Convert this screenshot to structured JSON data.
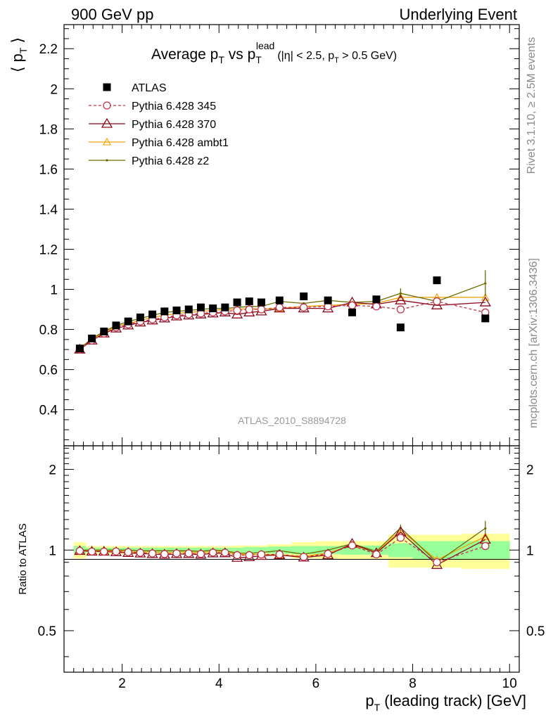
{
  "header": {
    "left": "900 GeV pp",
    "right": "Underlying Event"
  },
  "side": {
    "rivet": "Rivet 3.1.10, ≥ 2.5M events",
    "mcplots": "mcplots.cern.ch [arXiv:1306.3436]"
  },
  "watermark": "ATLAS_2010_S8894728",
  "colors": {
    "atlas": "#000000",
    "p345": "#c0334d",
    "p370": "#8b0a1e",
    "ambt1": "#f0a000",
    "z2": "#6b6b00",
    "band_inner": "#99ff99",
    "band_outer": "#ffff99"
  },
  "chart_data": [
    {
      "type": "scatter",
      "title": {
        "main": "Average p",
        "sub1": "T",
        "mid": " vs p",
        "sup": "lead",
        "sub2": "T",
        "cut": "(|η| < 2.5, p",
        "cutsub": "T",
        "cutend": " > 0.5 GeV)"
      },
      "ylabel": {
        "pre": "⟨ p",
        "sub": "T",
        "post": " ⟩"
      },
      "xlim": [
        0.8,
        10.2
      ],
      "ylim": [
        0.22,
        2.32
      ],
      "yticks": [
        0.4,
        0.6,
        0.8,
        1,
        1.2,
        1.4,
        1.6,
        1.8,
        2,
        2.2
      ],
      "ytick_labels": [
        "0.4",
        "0.6",
        "0.8",
        "1",
        "1.2",
        "1.4",
        "1.6",
        "1.8",
        "2",
        "2.2"
      ],
      "legend_position": "top-left",
      "x": [
        1.125,
        1.375,
        1.625,
        1.875,
        2.125,
        2.375,
        2.625,
        2.875,
        3.125,
        3.375,
        3.625,
        3.875,
        4.125,
        4.375,
        4.625,
        4.875,
        5.25,
        5.75,
        6.25,
        6.75,
        7.25,
        7.75,
        8.5,
        9.5
      ],
      "series": [
        {
          "name": "ATLAS",
          "key": "atlas",
          "marker": "square",
          "values": [
            0.705,
            0.755,
            0.79,
            0.82,
            0.84,
            0.86,
            0.875,
            0.89,
            0.895,
            0.9,
            0.91,
            0.905,
            0.91,
            0.935,
            0.94,
            0.935,
            0.945,
            0.965,
            0.945,
            0.885,
            0.95,
            0.81,
            1.045,
            0.855
          ]
        },
        {
          "name": "Pythia 6.428 345",
          "key": "p345",
          "marker": "circle",
          "dash": true,
          "values": [
            0.7,
            0.745,
            0.78,
            0.81,
            0.825,
            0.84,
            0.85,
            0.86,
            0.87,
            0.875,
            0.88,
            0.885,
            0.89,
            0.895,
            0.9,
            0.9,
            0.91,
            0.91,
            0.915,
            0.92,
            0.915,
            0.9,
            0.94,
            0.885
          ]
        },
        {
          "name": "Pythia 6.428 370",
          "key": "p370",
          "marker": "triangle",
          "values": [
            0.7,
            0.745,
            0.78,
            0.805,
            0.82,
            0.835,
            0.845,
            0.855,
            0.865,
            0.87,
            0.875,
            0.88,
            0.885,
            0.875,
            0.885,
            0.89,
            0.905,
            0.905,
            0.905,
            0.935,
            0.925,
            0.945,
            0.92,
            0.935
          ]
        },
        {
          "name": "Pythia 6.428 ambt1",
          "key": "ambt1",
          "marker": "triangle-small",
          "values": [
            0.7,
            0.75,
            0.785,
            0.815,
            0.83,
            0.845,
            0.86,
            0.87,
            0.88,
            0.885,
            0.89,
            0.895,
            0.9,
            0.9,
            0.905,
            0.9,
            0.905,
            0.915,
            0.92,
            0.925,
            0.93,
            0.96,
            0.96,
            0.96
          ]
        },
        {
          "name": "Pythia 6.428 z2",
          "key": "z2",
          "marker": "dot",
          "values": [
            0.705,
            0.755,
            0.79,
            0.82,
            0.84,
            0.855,
            0.87,
            0.885,
            0.89,
            0.895,
            0.9,
            0.905,
            0.905,
            0.91,
            0.915,
            0.915,
            0.94,
            0.93,
            0.945,
            0.935,
            0.94,
            0.98,
            0.94,
            1.03
          ],
          "errors": [
            0,
            0,
            0,
            0,
            0,
            0,
            0,
            0,
            0,
            0,
            0,
            0,
            0,
            0,
            0,
            0,
            0,
            0,
            0,
            0,
            0,
            0.025,
            0.02,
            0.065
          ]
        }
      ]
    },
    {
      "type": "line",
      "ylabel": "Ratio to ATLAS",
      "xlabel": {
        "pre": "p",
        "sub": "T",
        "post": " (leading track) [GeV]"
      },
      "xlim": [
        0.8,
        10.2
      ],
      "xticks": [
        2,
        4,
        6,
        8,
        10
      ],
      "xtick_labels": [
        "2",
        "4",
        "6",
        "8",
        "10"
      ],
      "yscale": "log",
      "ylim": [
        0.35,
        2.45
      ],
      "yticks": [
        0.5,
        1,
        2
      ],
      "ytick_labels": [
        "0.5",
        "1",
        "2"
      ],
      "band": {
        "x_edges": [
          1.0,
          1.25,
          1.5,
          1.75,
          2.0,
          2.25,
          2.5,
          2.75,
          3.0,
          3.25,
          3.5,
          3.75,
          4.0,
          4.25,
          4.5,
          4.75,
          5.0,
          5.5,
          6.0,
          6.5,
          7.0,
          7.5,
          8.0,
          9.0,
          10.0
        ],
        "outer": [
          0.07,
          0.035,
          0.035,
          0.035,
          0.035,
          0.035,
          0.035,
          0.035,
          0.035,
          0.035,
          0.035,
          0.035,
          0.035,
          0.04,
          0.04,
          0.04,
          0.05,
          0.07,
          0.08,
          0.08,
          0.08,
          0.14,
          0.14,
          0.15
        ],
        "inner": [
          0.035,
          0.02,
          0.02,
          0.02,
          0.02,
          0.02,
          0.02,
          0.02,
          0.02,
          0.02,
          0.02,
          0.02,
          0.02,
          0.02,
          0.025,
          0.025,
          0.03,
          0.035,
          0.035,
          0.04,
          0.04,
          0.06,
          0.08,
          0.08
        ]
      },
      "x": [
        1.125,
        1.375,
        1.625,
        1.875,
        2.125,
        2.375,
        2.625,
        2.875,
        3.125,
        3.375,
        3.625,
        3.875,
        4.125,
        4.375,
        4.625,
        4.875,
        5.25,
        5.75,
        6.25,
        6.75,
        7.25,
        7.75,
        8.5,
        9.5
      ],
      "series": [
        {
          "key": "p345",
          "marker": "circle",
          "dash": true,
          "values": [
            0.993,
            0.987,
            0.987,
            0.988,
            0.982,
            0.977,
            0.971,
            0.966,
            0.972,
            0.972,
            0.967,
            0.978,
            0.978,
            0.957,
            0.957,
            0.963,
            0.963,
            0.943,
            0.968,
            1.04,
            0.963,
            1.111,
            0.9,
            1.035
          ]
        },
        {
          "key": "p370",
          "marker": "triangle",
          "values": [
            0.993,
            0.987,
            0.987,
            0.982,
            0.976,
            0.971,
            0.966,
            0.961,
            0.966,
            0.967,
            0.962,
            0.972,
            0.973,
            0.936,
            0.941,
            0.952,
            0.958,
            0.938,
            0.958,
            1.056,
            0.974,
            1.167,
            0.88,
            1.094
          ]
        },
        {
          "key": "ambt1",
          "marker": "triangle-small",
          "values": [
            0.993,
            0.993,
            0.994,
            0.994,
            0.988,
            0.983,
            0.983,
            0.978,
            0.983,
            0.983,
            0.978,
            0.989,
            0.989,
            0.963,
            0.963,
            0.963,
            0.958,
            0.948,
            0.974,
            1.045,
            0.979,
            1.185,
            0.919,
            1.123
          ]
        },
        {
          "key": "z2",
          "marker": "dot",
          "values": [
            1.0,
            1.0,
            1.0,
            1.0,
            1.0,
            0.994,
            0.994,
            0.994,
            0.994,
            0.994,
            0.989,
            1.0,
            0.995,
            0.973,
            0.973,
            0.979,
            0.995,
            0.964,
            1.0,
            1.056,
            0.989,
            1.21,
            0.9,
            1.205
          ],
          "errors": [
            0,
            0,
            0,
            0,
            0,
            0,
            0,
            0,
            0,
            0,
            0,
            0,
            0,
            0,
            0,
            0,
            0,
            0,
            0,
            0,
            0,
            0.035,
            0.02,
            0.08
          ]
        }
      ]
    }
  ]
}
